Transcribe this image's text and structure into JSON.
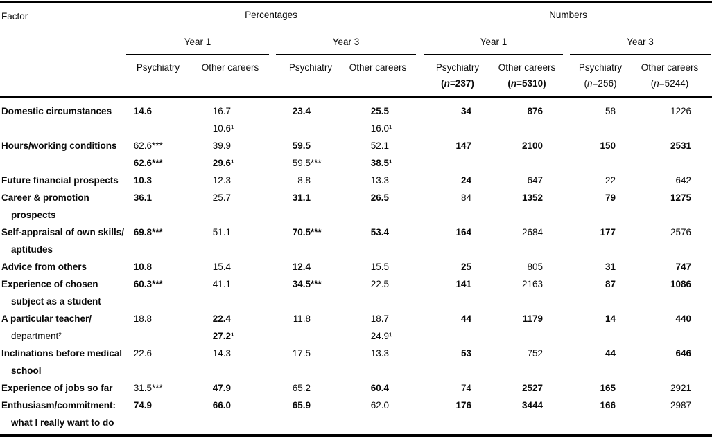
{
  "header": {
    "factor_label": "Factor",
    "groups": [
      {
        "label": "Percentages"
      },
      {
        "label": "Numbers"
      }
    ],
    "years": [
      "Year 1",
      "Year 3",
      "Year 1",
      "Year 3"
    ],
    "cols": [
      {
        "label": "Psychiatry",
        "sub": ""
      },
      {
        "label": "Other careers",
        "sub": ""
      },
      {
        "label": "Psychiatry",
        "sub": ""
      },
      {
        "label": "Other careers",
        "sub": ""
      },
      {
        "label": "Psychiatry",
        "sub": "(n=237)",
        "sub_bold": true
      },
      {
        "label": "Other careers",
        "sub": "(n=5310)",
        "sub_bold": true
      },
      {
        "label": "Psychiatry",
        "sub": "(n=256)",
        "sub_bold": false
      },
      {
        "label": "Other careers",
        "sub": "(n=5244)",
        "sub_bold": false
      }
    ]
  },
  "rows": [
    {
      "factor": [
        {
          "text": "Domestic circumstances",
          "bold": true
        }
      ],
      "cells": [
        [
          {
            "num": "14.6",
            "mark": "",
            "bold": true
          }
        ],
        [
          {
            "num": "16.7",
            "mark": "",
            "bold": false
          },
          {
            "num": "10.6",
            "mark": "¹",
            "bold": false
          }
        ],
        [
          {
            "num": "23.4",
            "mark": "",
            "bold": true
          }
        ],
        [
          {
            "num": "25.5",
            "mark": "",
            "bold": true
          },
          {
            "num": "16.0",
            "mark": "¹",
            "bold": false
          }
        ],
        [
          {
            "num": "34",
            "mark": "",
            "bold": true
          }
        ],
        [
          {
            "num": "876",
            "mark": "",
            "bold": true
          }
        ],
        [
          {
            "num": "58",
            "mark": "",
            "bold": false
          }
        ],
        [
          {
            "num": "1226",
            "mark": "",
            "bold": false
          }
        ]
      ]
    },
    {
      "factor": [
        {
          "text": "Hours/working conditions",
          "bold": true
        }
      ],
      "cells": [
        [
          {
            "num": "62.6",
            "mark": "***",
            "bold": false
          },
          {
            "num": "62.6",
            "mark": "***",
            "bold": true
          }
        ],
        [
          {
            "num": "39.9",
            "mark": "",
            "bold": false
          },
          {
            "num": "29.6",
            "mark": "¹",
            "bold": true
          }
        ],
        [
          {
            "num": "59.5",
            "mark": "",
            "bold": true
          },
          {
            "num": "59.5",
            "mark": "***",
            "bold": false
          }
        ],
        [
          {
            "num": "52.1",
            "mark": "",
            "bold": false
          },
          {
            "num": "38.5",
            "mark": "¹",
            "bold": true
          }
        ],
        [
          {
            "num": "147",
            "mark": "",
            "bold": true
          }
        ],
        [
          {
            "num": "2100",
            "mark": "",
            "bold": true
          }
        ],
        [
          {
            "num": "150",
            "mark": "",
            "bold": true
          }
        ],
        [
          {
            "num": "2531",
            "mark": "",
            "bold": true
          }
        ]
      ]
    },
    {
      "factor": [
        {
          "text": "Future financial prospects",
          "bold": true
        }
      ],
      "cells": [
        [
          {
            "num": "10.3",
            "mark": "",
            "bold": true
          }
        ],
        [
          {
            "num": "12.3",
            "mark": "",
            "bold": false
          }
        ],
        [
          {
            "num": "8.8",
            "mark": "",
            "bold": false
          }
        ],
        [
          {
            "num": "13.3",
            "mark": "",
            "bold": false
          }
        ],
        [
          {
            "num": "24",
            "mark": "",
            "bold": true
          }
        ],
        [
          {
            "num": "647",
            "mark": "",
            "bold": false
          }
        ],
        [
          {
            "num": "22",
            "mark": "",
            "bold": false
          }
        ],
        [
          {
            "num": "642",
            "mark": "",
            "bold": false
          }
        ]
      ]
    },
    {
      "factor": [
        {
          "text": "Career & promotion",
          "bold": true
        },
        {
          "text": "prospects",
          "bold": true
        }
      ],
      "cells": [
        [
          {
            "num": "36.1",
            "mark": "",
            "bold": true
          }
        ],
        [
          {
            "num": "25.7",
            "mark": "",
            "bold": false
          }
        ],
        [
          {
            "num": "31.1",
            "mark": "",
            "bold": true
          }
        ],
        [
          {
            "num": "26.5",
            "mark": "",
            "bold": true
          }
        ],
        [
          {
            "num": "84",
            "mark": "",
            "bold": false
          }
        ],
        [
          {
            "num": "1352",
            "mark": "",
            "bold": true
          }
        ],
        [
          {
            "num": "79",
            "mark": "",
            "bold": true
          }
        ],
        [
          {
            "num": "1275",
            "mark": "",
            "bold": true
          }
        ]
      ]
    },
    {
      "factor": [
        {
          "text": "Self-appraisal of own skills/",
          "bold": true
        },
        {
          "text": "aptitudes",
          "bold": true
        }
      ],
      "cells": [
        [
          {
            "num": "69.8",
            "mark": "***",
            "bold": true
          }
        ],
        [
          {
            "num": "51.1",
            "mark": "",
            "bold": false
          }
        ],
        [
          {
            "num": "70.5",
            "mark": "***",
            "bold": true
          }
        ],
        [
          {
            "num": "53.4",
            "mark": "",
            "bold": true
          }
        ],
        [
          {
            "num": "164",
            "mark": "",
            "bold": true
          }
        ],
        [
          {
            "num": "2684",
            "mark": "",
            "bold": false
          }
        ],
        [
          {
            "num": "177",
            "mark": "",
            "bold": true
          }
        ],
        [
          {
            "num": "2576",
            "mark": "",
            "bold": false
          }
        ]
      ]
    },
    {
      "factor": [
        {
          "text": "Advice from others",
          "bold": true
        }
      ],
      "cells": [
        [
          {
            "num": "10.8",
            "mark": "",
            "bold": true
          }
        ],
        [
          {
            "num": "15.4",
            "mark": "",
            "bold": false
          }
        ],
        [
          {
            "num": "12.4",
            "mark": "",
            "bold": true
          }
        ],
        [
          {
            "num": "15.5",
            "mark": "",
            "bold": false
          }
        ],
        [
          {
            "num": "25",
            "mark": "",
            "bold": true
          }
        ],
        [
          {
            "num": "805",
            "mark": "",
            "bold": false
          }
        ],
        [
          {
            "num": "31",
            "mark": "",
            "bold": true
          }
        ],
        [
          {
            "num": "747",
            "mark": "",
            "bold": true
          }
        ]
      ]
    },
    {
      "factor": [
        {
          "text": "Experience of chosen",
          "bold": true
        },
        {
          "text": "subject as a student",
          "bold": true
        }
      ],
      "cells": [
        [
          {
            "num": "60.3",
            "mark": "***",
            "bold": true
          }
        ],
        [
          {
            "num": "41.1",
            "mark": "",
            "bold": false
          }
        ],
        [
          {
            "num": "34.5",
            "mark": "***",
            "bold": true
          }
        ],
        [
          {
            "num": "22.5",
            "mark": "",
            "bold": false
          }
        ],
        [
          {
            "num": "141",
            "mark": "",
            "bold": true
          }
        ],
        [
          {
            "num": "2163",
            "mark": "",
            "bold": false
          }
        ],
        [
          {
            "num": "87",
            "mark": "",
            "bold": true
          }
        ],
        [
          {
            "num": "1086",
            "mark": "",
            "bold": true
          }
        ]
      ]
    },
    {
      "factor": [
        {
          "text": "A particular teacher/",
          "bold": true
        },
        {
          "text": "department²",
          "bold": false
        }
      ],
      "cells": [
        [
          {
            "num": "18.8",
            "mark": "",
            "bold": false
          }
        ],
        [
          {
            "num": "22.4",
            "mark": "",
            "bold": true
          },
          {
            "num": "27.2",
            "mark": "¹",
            "bold": true
          }
        ],
        [
          {
            "num": "11.8",
            "mark": "",
            "bold": false
          }
        ],
        [
          {
            "num": "18.7",
            "mark": "",
            "bold": false
          },
          {
            "num": "24.9",
            "mark": "¹",
            "bold": false
          }
        ],
        [
          {
            "num": "44",
            "mark": "",
            "bold": true
          }
        ],
        [
          {
            "num": "1179",
            "mark": "",
            "bold": true
          }
        ],
        [
          {
            "num": "14",
            "mark": "",
            "bold": true
          }
        ],
        [
          {
            "num": "440",
            "mark": "",
            "bold": true
          }
        ]
      ]
    },
    {
      "factor": [
        {
          "text": "Inclinations before medical",
          "bold": true
        },
        {
          "text": "school",
          "bold": true
        }
      ],
      "cells": [
        [
          {
            "num": "22.6",
            "mark": "",
            "bold": false
          }
        ],
        [
          {
            "num": "14.3",
            "mark": "",
            "bold": false
          }
        ],
        [
          {
            "num": "17.5",
            "mark": "",
            "bold": false
          }
        ],
        [
          {
            "num": "13.3",
            "mark": "",
            "bold": false
          }
        ],
        [
          {
            "num": "53",
            "mark": "",
            "bold": true
          }
        ],
        [
          {
            "num": "752",
            "mark": "",
            "bold": false
          }
        ],
        [
          {
            "num": "44",
            "mark": "",
            "bold": true
          }
        ],
        [
          {
            "num": "646",
            "mark": "",
            "bold": true
          }
        ]
      ]
    },
    {
      "factor": [
        {
          "text": "Experience of jobs so far",
          "bold": true
        }
      ],
      "cells": [
        [
          {
            "num": "31.5",
            "mark": "***",
            "bold": false
          }
        ],
        [
          {
            "num": "47.9",
            "mark": "",
            "bold": true
          }
        ],
        [
          {
            "num": "65.2",
            "mark": "",
            "bold": false
          }
        ],
        [
          {
            "num": "60.4",
            "mark": "",
            "bold": true
          }
        ],
        [
          {
            "num": "74",
            "mark": "",
            "bold": false
          }
        ],
        [
          {
            "num": "2527",
            "mark": "",
            "bold": true
          }
        ],
        [
          {
            "num": "165",
            "mark": "",
            "bold": true
          }
        ],
        [
          {
            "num": "2921",
            "mark": "",
            "bold": false
          }
        ]
      ]
    },
    {
      "factor": [
        {
          "text": "Enthusiasm/commitment:",
          "bold": true
        },
        {
          "text": "what I really want to do",
          "bold": true
        }
      ],
      "cells": [
        [
          {
            "num": "74.9",
            "mark": "",
            "bold": true
          }
        ],
        [
          {
            "num": "66.0",
            "mark": "",
            "bold": true
          }
        ],
        [
          {
            "num": "65.9",
            "mark": "",
            "bold": true
          }
        ],
        [
          {
            "num": "62.0",
            "mark": "",
            "bold": false
          }
        ],
        [
          {
            "num": "176",
            "mark": "",
            "bold": true
          }
        ],
        [
          {
            "num": "3444",
            "mark": "",
            "bold": true
          }
        ],
        [
          {
            "num": "166",
            "mark": "",
            "bold": true
          }
        ],
        [
          {
            "num": "2987",
            "mark": "",
            "bold": false
          }
        ]
      ]
    }
  ]
}
